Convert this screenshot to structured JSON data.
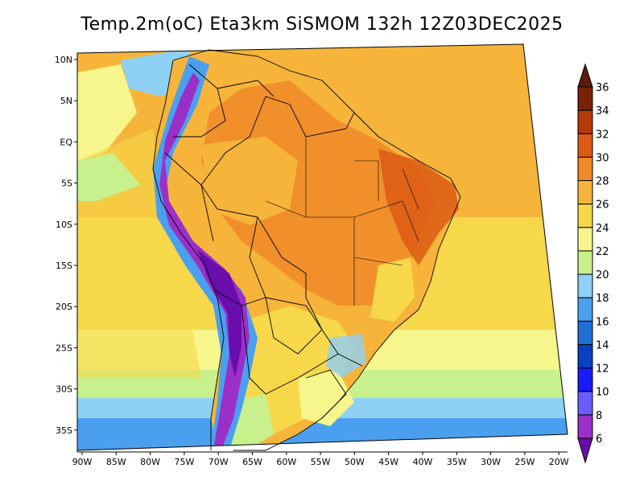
{
  "title": "Temp.2m(oC) Eta3km SiSMOM 132h 12Z03DEC2025",
  "map": {
    "lat_labels": [
      "10N",
      "5N",
      "EQ",
      "5S",
      "10S",
      "15S",
      "20S",
      "25S",
      "30S",
      "35S"
    ],
    "lon_labels": [
      "90W",
      "85W",
      "80W",
      "75W",
      "70W",
      "65W",
      "60W",
      "55W",
      "50W",
      "45W",
      "40W",
      "35W",
      "30W",
      "25W",
      "20W"
    ],
    "lon_range": [
      -91,
      -19
    ],
    "lat_range": [
      -38,
      12
    ]
  },
  "colorbar": {
    "levels": [
      "6",
      "8",
      "10",
      "12",
      "14",
      "16",
      "18",
      "20",
      "22",
      "24",
      "26",
      "28",
      "30",
      "32",
      "34",
      "36"
    ],
    "colors": [
      "#6a0dad",
      "#9b30c8",
      "#6a5cff",
      "#1a1aff",
      "#0a3fbf",
      "#1e6fd6",
      "#4aa0ee",
      "#8fd0f5",
      "#c8f08c",
      "#f6f68c",
      "#f6d84a",
      "#f6b53a",
      "#f08a28",
      "#dc5a14",
      "#b43a0a",
      "#7a2205",
      "#5a1c08"
    ]
  },
  "field_colors": {
    "ocean_tropical": "#f6b53a",
    "ocean_subtropical": "#f6d84a",
    "ocean_midlat": "#f6f68c",
    "ocean_cool": "#c8f08c",
    "ocean_cold": "#8fd0f5",
    "ocean_colder": "#4aa0ee",
    "land_hot": "#f08a28",
    "land_warm": "#f6b53a",
    "land_mild": "#f6d84a",
    "andes_cool": "#4aa0ee",
    "andes_cold": "#6a0dad",
    "andes_purple": "#9b30c8",
    "northeast_hot": "#dc5a14",
    "south_mild": "#f6f68c"
  }
}
